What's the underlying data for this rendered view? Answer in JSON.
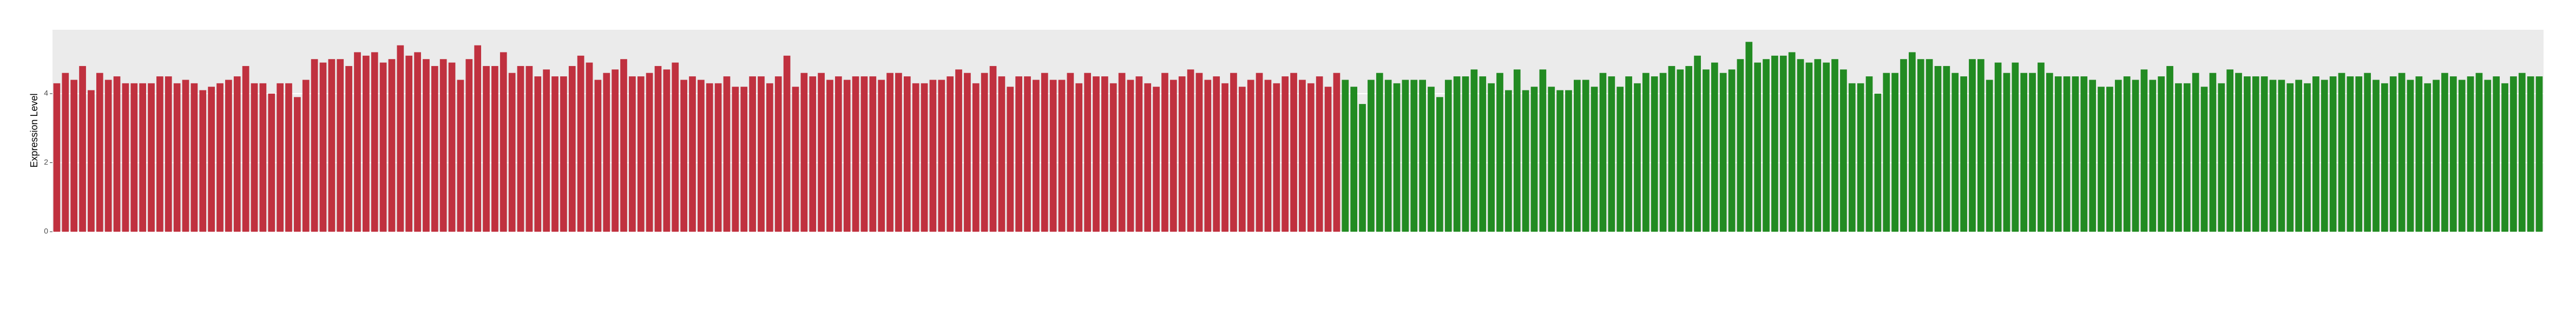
{
  "chart_data": {
    "type": "bar",
    "y_label": "Expression Level",
    "ylim": [
      0,
      5.85
    ],
    "yticks": [
      0,
      2,
      4
    ],
    "grid": true,
    "series": [
      {
        "color": "#c0313f",
        "values": [
          4.3,
          4.6,
          4.4,
          4.8,
          4.1,
          4.6,
          4.4,
          4.5,
          4.3,
          4.3,
          4.3,
          4.3,
          4.5,
          4.5,
          4.3,
          4.4,
          4.3,
          4.1,
          4.2,
          4.3,
          4.4,
          4.5,
          4.8,
          4.3,
          4.3,
          4.0,
          4.3,
          4.3,
          3.9,
          4.4,
          5.0,
          4.9,
          5.0,
          5.0,
          4.8,
          5.2,
          5.1,
          5.2,
          4.9,
          5.0,
          5.4,
          5.1,
          5.2,
          5.0,
          4.8,
          5.0,
          4.9,
          4.4,
          5.0,
          5.4,
          4.8,
          4.8,
          5.2,
          4.6,
          4.8,
          4.8,
          4.5,
          4.7,
          4.5,
          4.5,
          4.8,
          5.1,
          4.9,
          4.4,
          4.6,
          4.7,
          5.0,
          4.5,
          4.5,
          4.6,
          4.8,
          4.7,
          4.9,
          4.4,
          4.5,
          4.4,
          4.3,
          4.3,
          4.5,
          4.2,
          4.2,
          4.5,
          4.5,
          4.3,
          4.5,
          5.1,
          4.2,
          4.6,
          4.5,
          4.6,
          4.4,
          4.5,
          4.4,
          4.5,
          4.5,
          4.5,
          4.4,
          4.6,
          4.6,
          4.5,
          4.3,
          4.3,
          4.4,
          4.4,
          4.5,
          4.7,
          4.6,
          4.3,
          4.6,
          4.8,
          4.5,
          4.2,
          4.5,
          4.5,
          4.4,
          4.6,
          4.4,
          4.4,
          4.6,
          4.3,
          4.6,
          4.5,
          4.5,
          4.3,
          4.6,
          4.4,
          4.5,
          4.3,
          4.2,
          4.6,
          4.4,
          4.5,
          4.7,
          4.6,
          4.4,
          4.5,
          4.3,
          4.6,
          4.2,
          4.4,
          4.6,
          4.4,
          4.3,
          4.5,
          4.6,
          4.4,
          4.3,
          4.5,
          4.2,
          4.6
        ]
      },
      {
        "color": "#228b22",
        "values": [
          4.4,
          4.2,
          3.7,
          4.4,
          4.6,
          4.4,
          4.3,
          4.4,
          4.4,
          4.4,
          4.2,
          3.9,
          4.4,
          4.5,
          4.5,
          4.7,
          4.5,
          4.3,
          4.6,
          4.1,
          4.7,
          4.1,
          4.2,
          4.7,
          4.2,
          4.1,
          4.1,
          4.4,
          4.4,
          4.2,
          4.6,
          4.5,
          4.2,
          4.5,
          4.3,
          4.6,
          4.5,
          4.6,
          4.8,
          4.7,
          4.8,
          5.1,
          4.7,
          4.9,
          4.6,
          4.7,
          5.0,
          5.5,
          4.9,
          5.0,
          5.1,
          5.1,
          5.2,
          5.0,
          4.9,
          5.0,
          4.9,
          5.0,
          4.7,
          4.3,
          4.3,
          4.5,
          4.0,
          4.6,
          4.6,
          5.0,
          5.2,
          5.0,
          5.0,
          4.8,
          4.8,
          4.6,
          4.5,
          5.0,
          5.0,
          4.4,
          4.9,
          4.6,
          4.9,
          4.6,
          4.6,
          4.9,
          4.6,
          4.5,
          4.5,
          4.5,
          4.5,
          4.4,
          4.2,
          4.2,
          4.4,
          4.5,
          4.4,
          4.7,
          4.4,
          4.5,
          4.8,
          4.3,
          4.3,
          4.6,
          4.2,
          4.6,
          4.3,
          4.7,
          4.6,
          4.5,
          4.5,
          4.5,
          4.4,
          4.4,
          4.3,
          4.4,
          4.3,
          4.5,
          4.4,
          4.5,
          4.6,
          4.5,
          4.5,
          4.6,
          4.4,
          4.3,
          4.5,
          4.6,
          4.4,
          4.5,
          4.3,
          4.4,
          4.6,
          4.5,
          4.4,
          4.5,
          4.6,
          4.4,
          4.5,
          4.3,
          4.5,
          4.6,
          4.5,
          4.5
        ]
      }
    ]
  }
}
